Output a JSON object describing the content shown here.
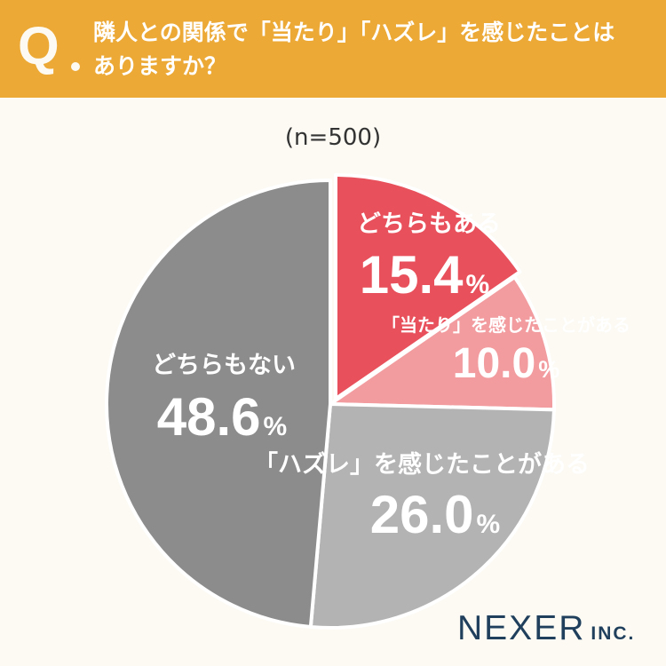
{
  "question": {
    "mark": "Q",
    "line1": "隣人との関係で「当たり」「ハズレ」を感じたことは",
    "line2": "ありますか？"
  },
  "sample_size": "(n=500)",
  "brand": {
    "name": "NEXER",
    "suffix": "INC."
  },
  "colors": {
    "header": "#eca936",
    "both": "#e8505b",
    "atari": "#f29c9f",
    "hazure": "#b3b3b3",
    "neither": "#8c8c8c"
  },
  "chart_data": {
    "type": "pie",
    "slices": [
      {
        "label": "どちらもある",
        "value": 15.4,
        "display": "15.4",
        "color": "#e8505b"
      },
      {
        "label": "「当たり」を感じたことがある",
        "value": 10.0,
        "display": "10.0",
        "color": "#f29c9f"
      },
      {
        "label": "「ハズレ」を感じたことがある",
        "value": 26.0,
        "display": "26.0",
        "color": "#b3b3b3"
      },
      {
        "label": "どちらもない",
        "value": 48.6,
        "display": "48.6",
        "color": "#8c8c8c"
      }
    ],
    "unit": "%",
    "start": "12 o'clock",
    "direction": "clockwise",
    "highlight": "first slice offset outward"
  }
}
